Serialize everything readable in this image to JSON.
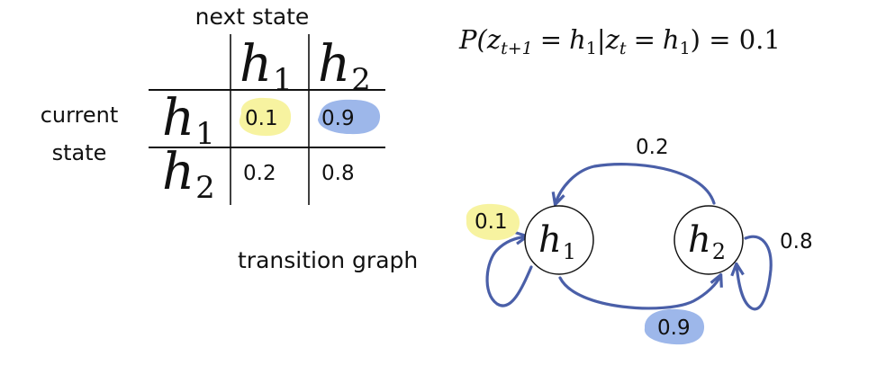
{
  "table": {
    "column_header": "next state",
    "row_header_lines": [
      "current",
      "state"
    ],
    "states": [
      {
        "base": "h",
        "sub": "1"
      },
      {
        "base": "h",
        "sub": "2"
      }
    ],
    "values": [
      [
        "0.1",
        "0.9"
      ],
      [
        "0.2",
        "0.8"
      ]
    ]
  },
  "equation": {
    "text": "P(z_{t+1} = h_1 | z_t = h_1) = 0.1",
    "P": "P(",
    "z": "z",
    "sub_t_plus_1": "t+1",
    "eq": "=",
    "h": "h",
    "one": "1",
    "bar_z": "|z",
    "sub_t": "t",
    "close_eq": ") = 0.1"
  },
  "graph": {
    "caption": "transition graph",
    "nodes": [
      {
        "base": "h",
        "sub": "1"
      },
      {
        "base": "h",
        "sub": "2"
      }
    ],
    "edge_labels": {
      "h1_to_h1": "0.1",
      "h1_to_h2": "0.9",
      "h2_to_h1": "0.2",
      "h2_to_h2": "0.8"
    }
  },
  "colors": {
    "highlight_yellow": "#f7f3a0",
    "highlight_blue": "#9db7ea",
    "edge": "#4a5fa8"
  }
}
